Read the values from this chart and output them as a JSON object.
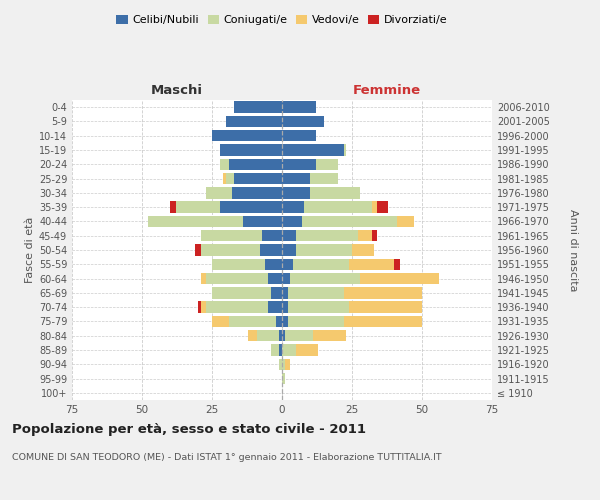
{
  "age_groups": [
    "100+",
    "95-99",
    "90-94",
    "85-89",
    "80-84",
    "75-79",
    "70-74",
    "65-69",
    "60-64",
    "55-59",
    "50-54",
    "45-49",
    "40-44",
    "35-39",
    "30-34",
    "25-29",
    "20-24",
    "15-19",
    "10-14",
    "5-9",
    "0-4"
  ],
  "birth_years": [
    "≤ 1910",
    "1911-1915",
    "1916-1920",
    "1921-1925",
    "1926-1930",
    "1931-1935",
    "1936-1940",
    "1941-1945",
    "1946-1950",
    "1951-1955",
    "1956-1960",
    "1961-1965",
    "1966-1970",
    "1971-1975",
    "1976-1980",
    "1981-1985",
    "1986-1990",
    "1991-1995",
    "1996-2000",
    "2001-2005",
    "2006-2010"
  ],
  "maschi": {
    "celibi": [
      0,
      0,
      0,
      1,
      1,
      2,
      5,
      4,
      5,
      6,
      8,
      7,
      14,
      22,
      18,
      17,
      19,
      22,
      25,
      20,
      17
    ],
    "coniugati": [
      0,
      0,
      1,
      3,
      8,
      17,
      22,
      21,
      22,
      19,
      21,
      22,
      34,
      16,
      9,
      3,
      3,
      0,
      0,
      0,
      0
    ],
    "vedovi": [
      0,
      0,
      0,
      0,
      3,
      6,
      2,
      0,
      2,
      0,
      0,
      0,
      0,
      0,
      0,
      1,
      0,
      0,
      0,
      0,
      0
    ],
    "divorziati": [
      0,
      0,
      0,
      0,
      0,
      0,
      1,
      0,
      0,
      0,
      2,
      0,
      0,
      2,
      0,
      0,
      0,
      0,
      0,
      0,
      0
    ]
  },
  "femmine": {
    "nubili": [
      0,
      0,
      0,
      0,
      1,
      2,
      2,
      2,
      3,
      4,
      5,
      5,
      7,
      8,
      10,
      10,
      12,
      22,
      12,
      15,
      12
    ],
    "coniugate": [
      0,
      1,
      1,
      5,
      10,
      20,
      22,
      20,
      25,
      20,
      20,
      22,
      34,
      24,
      18,
      10,
      8,
      1,
      0,
      0,
      0
    ],
    "vedove": [
      0,
      0,
      2,
      8,
      12,
      28,
      26,
      28,
      28,
      16,
      8,
      5,
      6,
      2,
      0,
      0,
      0,
      0,
      0,
      0,
      0
    ],
    "divorziate": [
      0,
      0,
      0,
      0,
      0,
      0,
      0,
      0,
      0,
      2,
      0,
      2,
      0,
      4,
      0,
      0,
      0,
      0,
      0,
      0,
      0
    ]
  },
  "colors": {
    "celibi": "#3d6ea8",
    "coniugati": "#c8d9a2",
    "vedovi": "#f5c96e",
    "divorziati": "#cc2222"
  },
  "xlim": 75,
  "title": "Popolazione per età, sesso e stato civile - 2011",
  "subtitle": "COMUNE DI SAN TEODORO (ME) - Dati ISTAT 1° gennaio 2011 - Elaborazione TUTTITALIA.IT",
  "ylabel_left": "Fasce di età",
  "ylabel_right": "Anni di nascita",
  "xlabel_maschi": "Maschi",
  "xlabel_femmine": "Femmine",
  "bg_color": "#f0f0f0",
  "plot_bg": "#ffffff",
  "grid_color": "#cccccc"
}
